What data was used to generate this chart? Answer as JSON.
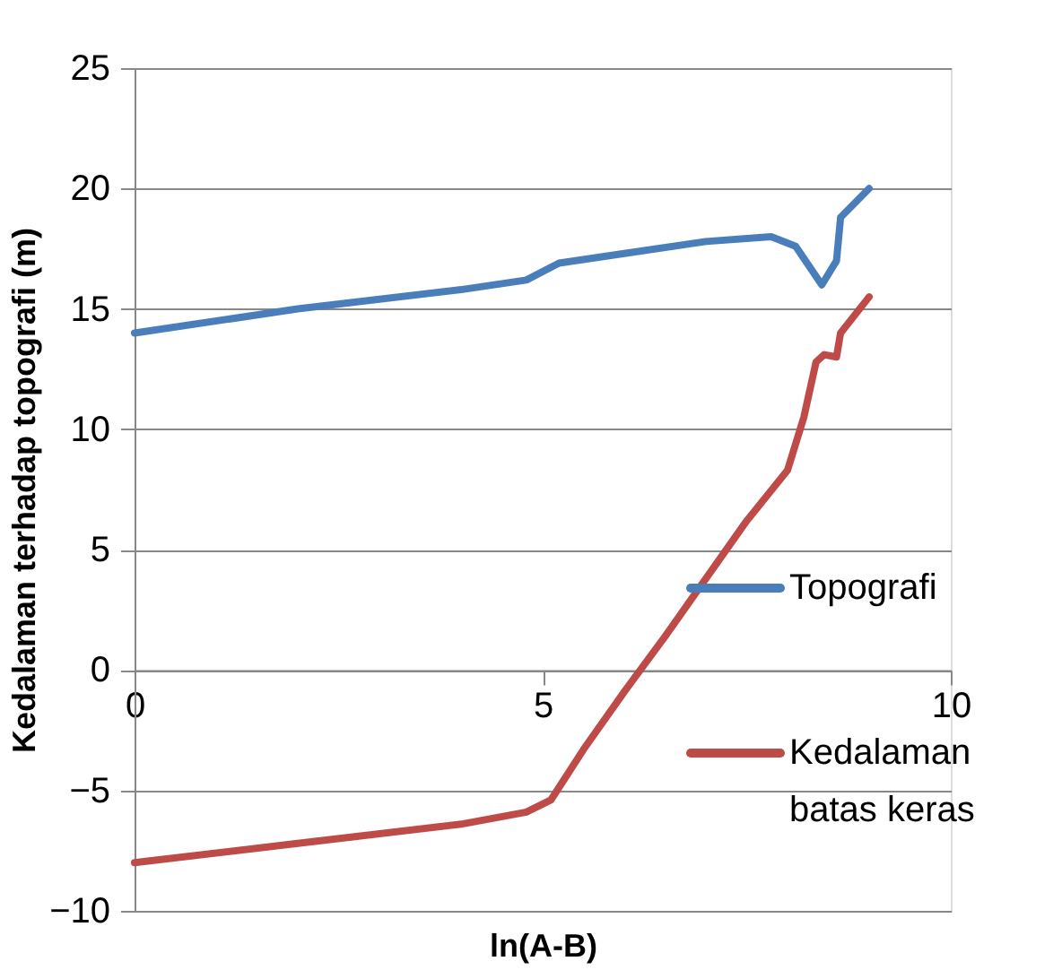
{
  "chart_data": {
    "type": "line",
    "xlabel": "ln(A-B)",
    "ylabel": "Kedalaman terhadap topografi (m)",
    "xlim": [
      0,
      10
    ],
    "xticks": [
      0,
      5,
      10
    ],
    "ylim": [
      -10,
      25
    ],
    "yticks": [
      -10,
      -5,
      0,
      5,
      10,
      15,
      20,
      25
    ],
    "grid": "y",
    "legend": "right",
    "line_style": "solid",
    "marker": "none",
    "series": [
      {
        "name": "Topografi",
        "color": "#4a7ebb",
        "x": [
          0,
          2,
          4,
          4.8,
          5.2,
          6,
          7,
          7.8,
          8.1,
          8.42,
          8.6,
          8.65,
          9
        ],
        "values": [
          14,
          15,
          15.8,
          16.2,
          16.9,
          17.3,
          17.8,
          18,
          17.6,
          16,
          17,
          18.8,
          20
        ]
      },
      {
        "name": "Kedalaman batas keras",
        "color": "#be4b48",
        "x": [
          0,
          2,
          4,
          4.8,
          5.1,
          5.5,
          6,
          6.5,
          7,
          7.5,
          8,
          8.2,
          8.35,
          8.45,
          8.6,
          8.65,
          9
        ],
        "values": [
          -8,
          -7.2,
          -6.4,
          -5.9,
          -5.4,
          -3.3,
          -0.9,
          1.4,
          3.8,
          6.2,
          8.3,
          10.5,
          12.8,
          13.1,
          13,
          14,
          15.5
        ]
      }
    ]
  }
}
